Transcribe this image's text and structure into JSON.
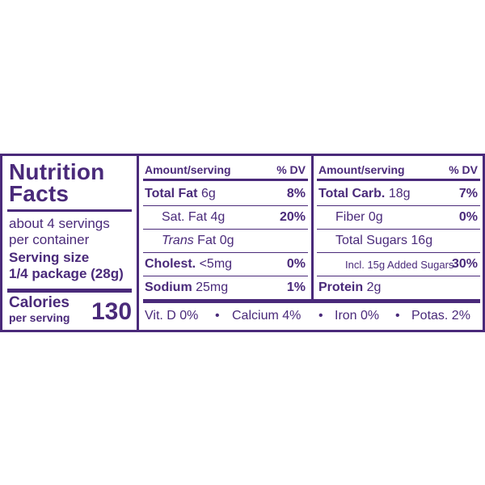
{
  "colors": {
    "ink": "#4a2a7a",
    "background": "#ffffff"
  },
  "left": {
    "title_line1": "Nutrition",
    "title_line2": "Facts",
    "servings_line1": "about 4 servings",
    "servings_line2": "per container",
    "serving_size_label": "Serving size",
    "serving_size_value": "1/4 package (28g)",
    "calories_label": "Calories",
    "calories_sub": "per serving",
    "calories_value": "130"
  },
  "middle": {
    "header_amount": "Amount/serving",
    "header_dv": "% DV",
    "rows": [
      {
        "name": "Total Fat",
        "amount": "6g",
        "dv": "8%"
      },
      {
        "name": "Sat. Fat",
        "amount": "4g",
        "dv": "20%"
      },
      {
        "name": "Trans",
        "amount": "Fat 0g",
        "dv": ""
      },
      {
        "name": "Cholest.",
        "amount": "<5mg",
        "dv": "0%"
      },
      {
        "name": "Sodium",
        "amount": "25mg",
        "dv": "1%"
      }
    ]
  },
  "right": {
    "header_amount": "Amount/serving",
    "header_dv": "% DV",
    "rows": [
      {
        "name": "Total Carb.",
        "amount": "18g",
        "dv": "7%"
      },
      {
        "name": "Fiber",
        "amount": "0g",
        "dv": "0%"
      },
      {
        "name": "Total Sugars",
        "amount": "16g",
        "dv": ""
      },
      {
        "name": "Incl. 15g Added Sugars",
        "amount": "",
        "dv": "30%"
      },
      {
        "name": "Protein",
        "amount": "2g",
        "dv": ""
      }
    ]
  },
  "footer": {
    "vitd": "Vit. D 0%",
    "calcium": "Calcium 4%",
    "iron": "Iron 0%",
    "potassium": "Potas. 2%",
    "separator": "•"
  }
}
